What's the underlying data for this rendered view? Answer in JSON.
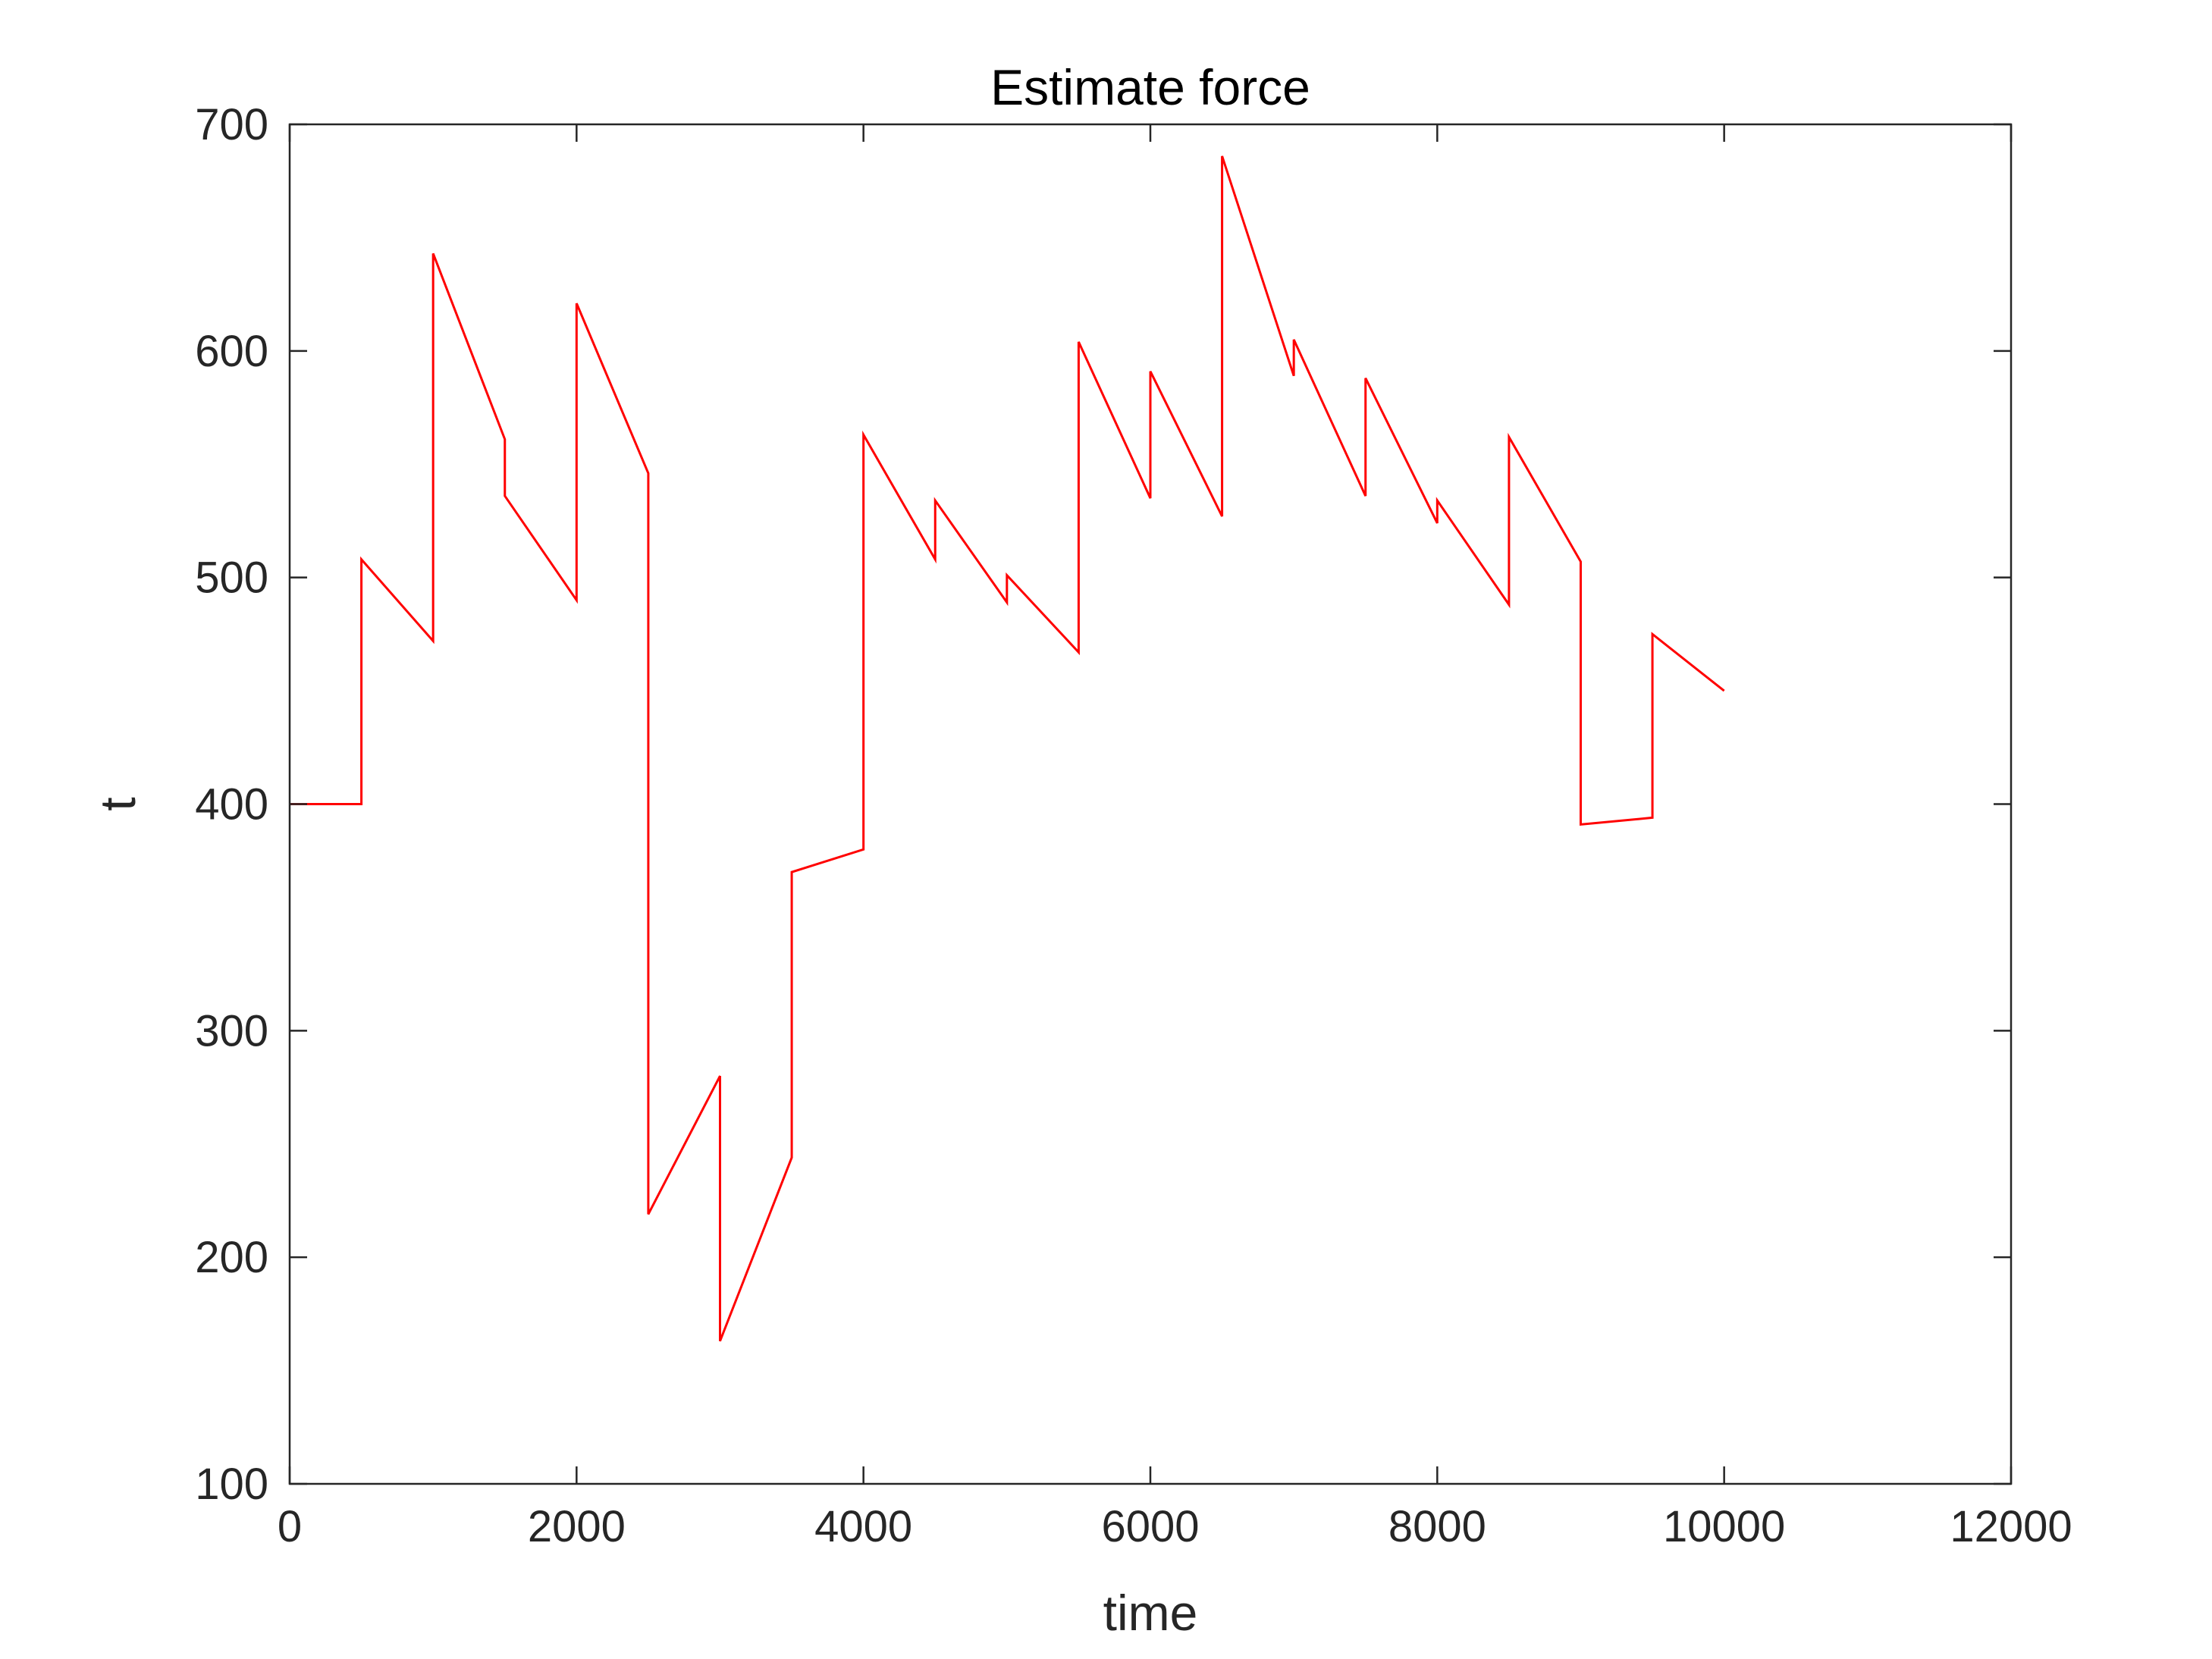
{
  "chart_data": {
    "type": "line",
    "title": "Estimate force",
    "xlabel": "time",
    "ylabel": "t",
    "xlim": [
      0,
      12000
    ],
    "ylim": [
      100,
      700
    ],
    "xticks": [
      0,
      2000,
      4000,
      6000,
      8000,
      10000,
      12000
    ],
    "yticks": [
      100,
      200,
      300,
      400,
      500,
      600,
      700
    ],
    "xtick_labels": [
      "0",
      "2000",
      "4000",
      "6000",
      "8000",
      "10000",
      "12000"
    ],
    "ytick_labels": [
      "100",
      "200",
      "300",
      "400",
      "500",
      "600",
      "700"
    ],
    "grid": false,
    "line_color": "#ff0000",
    "axes_color": "#262626",
    "series": [
      {
        "x": [
          0,
          500,
          500,
          1000,
          1000,
          1500,
          1500,
          2000,
          2000,
          2500,
          2500,
          3000,
          3000,
          3500,
          3500,
          4000,
          4000,
          4500,
          4500,
          5000,
          5000,
          5500,
          5500,
          6000,
          6000,
          6500,
          6500,
          7000,
          7000,
          7500,
          7500,
          8000,
          8000,
          8500,
          8500,
          9000,
          9000,
          9500,
          9500,
          10000
        ],
        "y": [
          400,
          400,
          508,
          472,
          643,
          561,
          536,
          490,
          621,
          546,
          219,
          280,
          163,
          244,
          370,
          380,
          563,
          508,
          534,
          489,
          501,
          467,
          604,
          535,
          591,
          527,
          686,
          589,
          605,
          536,
          588,
          524,
          534,
          488,
          562,
          507,
          391,
          394,
          475,
          450
        ]
      }
    ]
  }
}
